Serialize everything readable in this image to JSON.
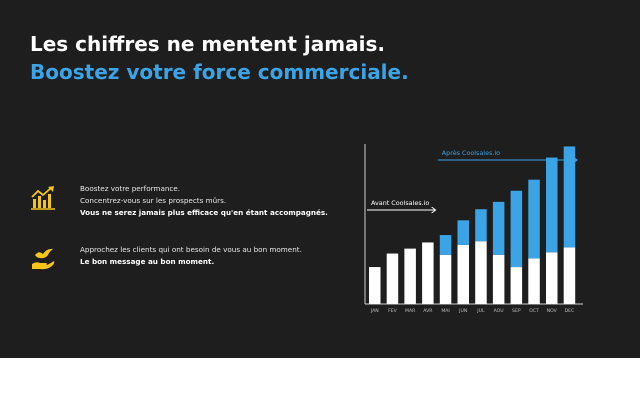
{
  "headline": {
    "line1": "Les chiffres ne mentent jamais.",
    "line2": "Boostez votre force commerciale."
  },
  "features": [
    {
      "icon": "growth-chart-icon",
      "lines": [
        "Boostez votre performance.",
        "Concentrez-vous sur les prospects mûrs."
      ],
      "bold": "Vous ne serez jamais plus efficace qu'en étant accompagnés."
    },
    {
      "icon": "bird-hand-icon",
      "lines": [
        "Approchez les clients qui ont besoin de vous au bon moment."
      ],
      "bold": "Le bon message au bon moment."
    }
  ],
  "colors": {
    "accent": "#3aa4e6",
    "panel": "#1e1e1e",
    "icon": "#f5c518",
    "bar_base": "#ffffff"
  },
  "chart_data": {
    "type": "bar",
    "stacked": true,
    "categories": [
      "JAN",
      "FEV",
      "MAR",
      "AVR",
      "MAI",
      "JUN",
      "JUL",
      "AOU",
      "SEP",
      "OCT",
      "NOV",
      "DEC"
    ],
    "series": [
      {
        "values": [
          30,
          41,
          45,
          50,
          40,
          48,
          51,
          40,
          30,
          37,
          42,
          46
        ]
      },
      {
        "values": [
          0,
          0,
          0,
          0,
          16,
          20,
          26,
          43,
          62,
          64,
          77,
          82
        ]
      }
    ],
    "annotations": [
      {
        "text": "Avant Coolsales.io",
        "from": "JAN",
        "to": "AVR"
      },
      {
        "text": "Après Coolsales.io",
        "from": "MAI",
        "to": "DEC"
      }
    ],
    "ylim": [
      0,
      130
    ],
    "grid": false
  }
}
